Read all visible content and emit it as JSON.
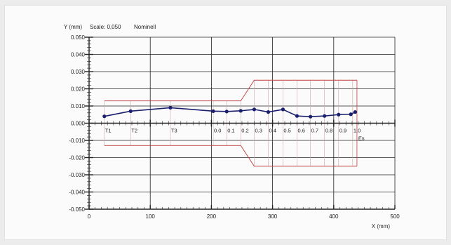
{
  "header": {
    "y_label": "Y (mm)",
    "scale": "Scale: 0,050",
    "mode": "Nominell"
  },
  "chart_data": {
    "type": "line",
    "xlabel": "X (mm)",
    "ylabel": "Y (mm)",
    "xlim": [
      0,
      500
    ],
    "ylim": [
      -0.05,
      0.05
    ],
    "x_ticks": [
      "0",
      "100",
      "200",
      "300",
      "400",
      "500"
    ],
    "y_ticks": [
      "0.050",
      "0.040",
      "0.030",
      "0.020",
      "0.010",
      "0.000",
      "-0.010",
      "-0.020",
      "-0.030",
      "-0.040",
      "-0.050"
    ],
    "grid": true,
    "series": [
      {
        "color": "#1a1f6e",
        "x": [
          25,
          68,
          133,
          203,
          225,
          248,
          270,
          293,
          317,
          340,
          362,
          385,
          408,
          428,
          435
        ],
        "y": [
          0.004,
          0.007,
          0.009,
          0.007,
          0.0068,
          0.0072,
          0.008,
          0.0065,
          0.008,
          0.0042,
          0.0038,
          0.0042,
          0.005,
          0.0052,
          0.0065
        ]
      }
    ],
    "tolerance_band": {
      "color": "#c04040",
      "upper": {
        "x": [
          25,
          248,
          270,
          438
        ],
        "y": [
          0.013,
          0.013,
          0.025,
          0.025
        ]
      },
      "lower": {
        "x": [
          25,
          248,
          270,
          438
        ],
        "y": [
          -0.013,
          -0.013,
          -0.025,
          -0.025
        ]
      }
    },
    "position_markers": [
      {
        "label": "T1",
        "x": 25
      },
      {
        "label": "T2",
        "x": 68
      },
      {
        "label": "T3",
        "x": 133
      },
      {
        "label": "0.0",
        "x": 203
      },
      {
        "label": "0.1",
        "x": 225
      },
      {
        "label": "0.2",
        "x": 248
      },
      {
        "label": "0.3",
        "x": 270
      },
      {
        "label": "0.4",
        "x": 293
      },
      {
        "label": "0.5",
        "x": 317
      },
      {
        "label": "0.6",
        "x": 340
      },
      {
        "label": "0.7",
        "x": 362
      },
      {
        "label": "0.8",
        "x": 385
      },
      {
        "label": "0.9",
        "x": 408
      },
      {
        "label": "1.0",
        "x": 431
      }
    ],
    "end_label": "Es"
  },
  "colors": {
    "background": "#fbfbfb",
    "grid": "#222222",
    "series": "#1a1f6e",
    "tolerance": "#c04040",
    "marker_lines": "#c8a8a8"
  }
}
